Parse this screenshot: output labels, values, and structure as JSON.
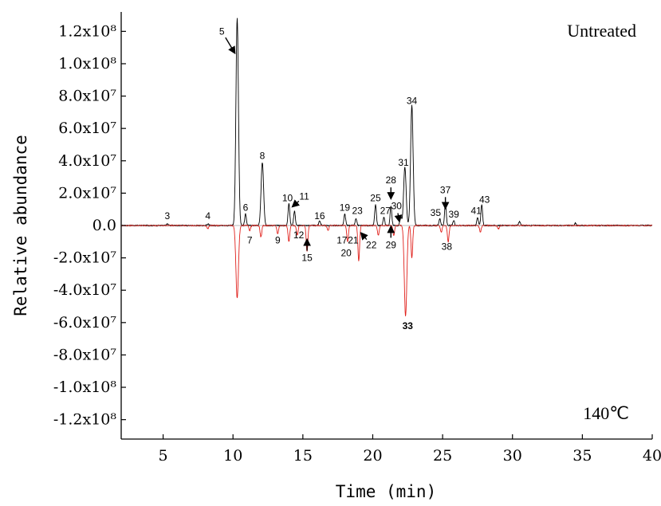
{
  "chart_data": {
    "type": "line",
    "xlabel": "Time (min)",
    "ylabel": "Relative abundance",
    "xlim": [
      2,
      40
    ],
    "ylim": [
      -132000000.0,
      132000000.0
    ],
    "x_ticks": [
      5,
      10,
      15,
      20,
      25,
      30,
      35,
      40
    ],
    "y_ticks": [
      {
        "value": 120000000.0,
        "label": "1.2x10⁸"
      },
      {
        "value": 100000000.0,
        "label": "1.0x10⁸"
      },
      {
        "value": 80000000.0,
        "label": "8.0x10⁷"
      },
      {
        "value": 60000000.0,
        "label": "6.0x10⁷"
      },
      {
        "value": 40000000.0,
        "label": "4.0x10⁷"
      },
      {
        "value": 20000000.0,
        "label": "2.0x10⁷"
      },
      {
        "value": 0,
        "label": "0.0"
      },
      {
        "value": -20000000.0,
        "label": "-2.0x10⁷"
      },
      {
        "value": -40000000.0,
        "label": "-4.0x10⁷"
      },
      {
        "value": -60000000.0,
        "label": "-6.0x10⁷"
      },
      {
        "value": -80000000.0,
        "label": "-8.0x10⁷"
      },
      {
        "value": -100000000.0,
        "label": "-1.0x10⁸"
      },
      {
        "value": -120000000.0,
        "label": "-1.2x10⁸"
      }
    ],
    "corner_labels": {
      "top_right": "Untreated",
      "bottom_right": "140℃"
    },
    "series": [
      {
        "color": "#000000",
        "peaks": [
          [
            5.3,
            1000000.0
          ],
          [
            8.2,
            1000000.0
          ],
          [
            10.3,
            128000000.0
          ],
          [
            10.9,
            7000000.0
          ],
          [
            12.1,
            39000000.0
          ],
          [
            14.0,
            14000000.0
          ],
          [
            14.4,
            9000000.0
          ],
          [
            16.2,
            3000000.0
          ],
          [
            18.0,
            7000000.0
          ],
          [
            18.8,
            4000000.0
          ],
          [
            20.2,
            13000000.0
          ],
          [
            20.8,
            5000000.0
          ],
          [
            21.3,
            12000000.0
          ],
          [
            22.0,
            6000000.0
          ],
          [
            22.3,
            36000000.0
          ],
          [
            22.8,
            74000000.0
          ],
          [
            24.8,
            4000000.0
          ],
          [
            25.2,
            14000000.0
          ],
          [
            25.8,
            3000000.0
          ],
          [
            27.5,
            5000000.0
          ],
          [
            27.8,
            13000000.0
          ],
          [
            30.5,
            2500000.0
          ],
          [
            34.5,
            1500000.0
          ]
        ]
      },
      {
        "color": "#e0201b",
        "peaks": [
          [
            8.2,
            -2000000.0
          ],
          [
            10.3,
            -45000000.0
          ],
          [
            11.2,
            -3000000.0
          ],
          [
            12.0,
            -7000000.0
          ],
          [
            13.2,
            -5000000.0
          ],
          [
            14.0,
            -10000000.0
          ],
          [
            14.6,
            -6000000.0
          ],
          [
            15.3,
            -16000000.0
          ],
          [
            16.8,
            -3000000.0
          ],
          [
            18.2,
            -10000000.0
          ],
          [
            19.0,
            -22000000.0
          ],
          [
            20.4,
            -6000000.0
          ],
          [
            21.5,
            -6000000.0
          ],
          [
            22.35,
            -56000000.0
          ],
          [
            22.8,
            -20000000.0
          ],
          [
            24.9,
            -4000000.0
          ],
          [
            25.4,
            -10000000.0
          ],
          [
            27.7,
            -4000000.0
          ],
          [
            29.0,
            -2000000.0
          ]
        ]
      }
    ],
    "peak_labels": [
      {
        "text": "3",
        "x": 5.3,
        "y": 6000000.0
      },
      {
        "text": "4",
        "x": 8.2,
        "y": 6000000.0
      },
      {
        "text": "5",
        "x": 9.2,
        "y": 120000000.0,
        "arrow_to": [
          10.1,
          107000000.0
        ]
      },
      {
        "text": "6",
        "x": 10.9,
        "y": 11000000.0
      },
      {
        "text": "7",
        "x": 11.2,
        "y": -9000000.0
      },
      {
        "text": "8",
        "x": 12.1,
        "y": 43000000.0
      },
      {
        "text": "9",
        "x": 13.2,
        "y": -9000000.0
      },
      {
        "text": "10",
        "x": 13.9,
        "y": 17000000.0
      },
      {
        "text": "11",
        "x": 15.1,
        "y": 18000000.0,
        "arrow_to": [
          14.3,
          12000000.0
        ]
      },
      {
        "text": "12",
        "x": 14.7,
        "y": -6000000.0
      },
      {
        "text": "15",
        "x": 15.3,
        "y": -20000000.0,
        "arrow_to": [
          15.3,
          -17000000.0
        ]
      },
      {
        "text": "16",
        "x": 16.2,
        "y": 6000000.0
      },
      {
        "text": "17",
        "x": 17.8,
        "y": -9000000.0
      },
      {
        "text": "19",
        "x": 18.0,
        "y": 11000000.0
      },
      {
        "text": "20",
        "x": 18.1,
        "y": -17000000.0
      },
      {
        "text": "21",
        "x": 18.6,
        "y": -9000000.0
      },
      {
        "text": "22",
        "x": 19.9,
        "y": -12000000.0,
        "arrow_to": [
          19.2,
          -5000000.0
        ]
      },
      {
        "text": "23",
        "x": 18.9,
        "y": 9000000.0
      },
      {
        "text": "25",
        "x": 20.2,
        "y": 17000000.0
      },
      {
        "text": "27",
        "x": 20.9,
        "y": 9000000.0
      },
      {
        "text": "28",
        "x": 21.3,
        "y": 28000000.0,
        "arrow_to": [
          21.3,
          26000000.0
        ]
      },
      {
        "text": "29",
        "x": 21.3,
        "y": -12000000.0,
        "arrow_to": [
          21.3,
          -7000000.0
        ]
      },
      {
        "text": "30",
        "x": 21.7,
        "y": 12000000.0,
        "arrow_to": [
          21.9,
          3000000.0
        ]
      },
      {
        "text": "31",
        "x": 22.2,
        "y": 39000000.0
      },
      {
        "text": "33",
        "x": 22.5,
        "y": -62000000.0,
        "bold": true
      },
      {
        "text": "34",
        "x": 22.8,
        "y": 77000000.0
      },
      {
        "text": "35",
        "x": 24.5,
        "y": 8000000.0
      },
      {
        "text": "37",
        "x": 25.2,
        "y": 22000000.0,
        "arrow_to": [
          25.2,
          20000000.0
        ]
      },
      {
        "text": "38",
        "x": 25.3,
        "y": -13000000.0
      },
      {
        "text": "39",
        "x": 25.8,
        "y": 7000000.0
      },
      {
        "text": "41",
        "x": 27.4,
        "y": 9000000.0
      },
      {
        "text": "43",
        "x": 28.0,
        "y": 16000000.0
      }
    ]
  }
}
